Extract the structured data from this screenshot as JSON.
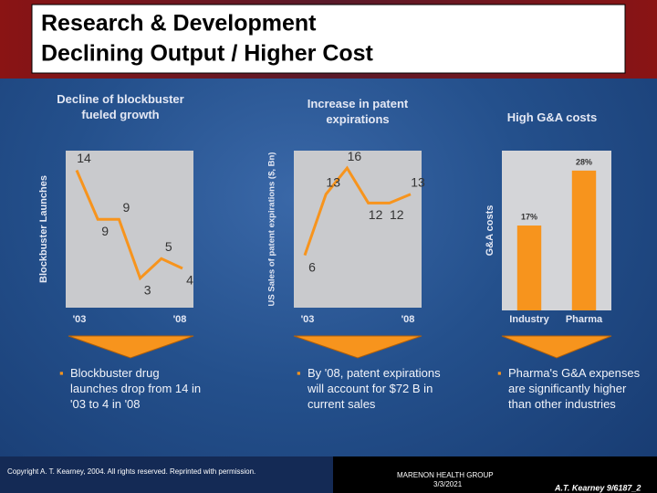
{
  "header": {
    "title": [
      "Research & Development",
      "Declining Output  / Higher Cost"
    ]
  },
  "chart_data": [
    {
      "type": "line",
      "title": "Decline of blockbuster fueled growth",
      "y_label": "Blockbuster Launches",
      "categories": [
        "'03",
        null,
        null,
        null,
        null,
        "'08"
      ],
      "values": [
        14,
        9,
        9,
        3,
        5,
        4
      ],
      "color": "#f7941d",
      "ylim": [
        0,
        16
      ]
    },
    {
      "type": "line",
      "title": "Increase in patent expirations",
      "y_label": "US Sales of patent expirations ($, Bn)",
      "categories": [
        "'03",
        null,
        null,
        null,
        null,
        "'08"
      ],
      "values": [
        6,
        13,
        16,
        12,
        12,
        13
      ],
      "color": "#f7941d",
      "ylim": [
        0,
        18
      ]
    },
    {
      "type": "bar",
      "title": "High G&A costs",
      "y_label": "G&A costs",
      "categories": [
        "Industry",
        "Pharma"
      ],
      "values": [
        17,
        28
      ],
      "value_labels": [
        "17%",
        "28%"
      ],
      "color": "#f7941d",
      "ylim": [
        0,
        32
      ]
    }
  ],
  "bullets": [
    "Blockbuster drug launches drop from 14 in '03 to 4 in '08",
    "By '08, patent expirations will account for $72 B in current sales",
    "Pharma's G&A expenses are significantly higher than other industries"
  ],
  "footer": {
    "copyright": "Copyright A. T. Kearney, 2004. All rights reserved. Reprinted with permission.",
    "organization": "MARENON HEALTH GROUP",
    "date": "3/3/2021",
    "source": "A.T. Kearney 9/6187_2"
  }
}
